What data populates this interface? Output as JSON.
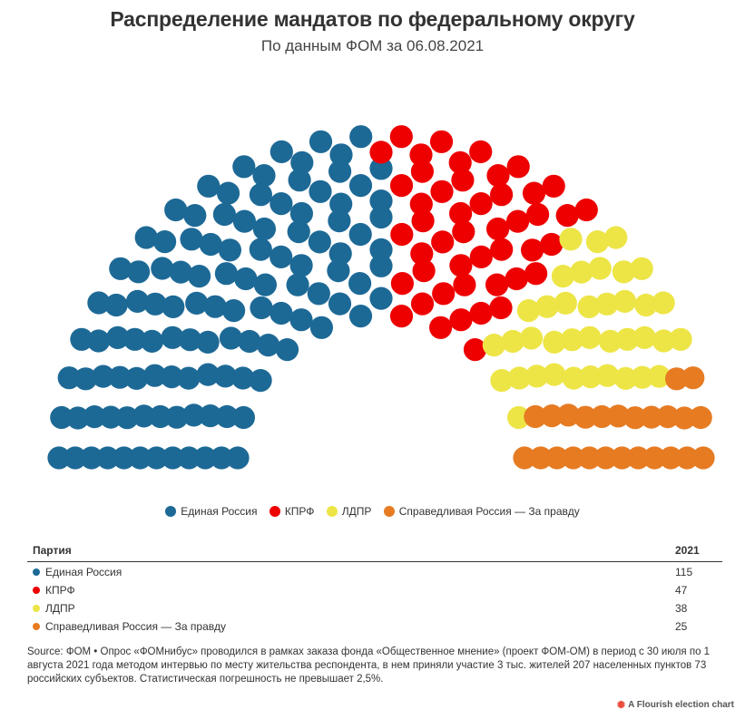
{
  "title": "Распределение мандатов по федеральному округу",
  "subtitle": "По данным ФОМ за 06.08.2021",
  "chart_data": {
    "type": "parliament",
    "total_seats": 225,
    "series": [
      {
        "name": "Единая Россия",
        "seats": 115,
        "color": "#1d6996"
      },
      {
        "name": "КПРФ",
        "seats": 47,
        "color": "#ee0000"
      },
      {
        "name": "ЛДПР",
        "seats": 38,
        "color": "#ede546"
      },
      {
        "name": "Справедливая Россия — За правду",
        "seats": 25,
        "color": "#e67b22"
      }
    ],
    "legend_position": "bottom-center"
  },
  "table": {
    "header_party": "Партия",
    "header_year": "2021",
    "rows": [
      {
        "party": "Единая Россия",
        "value": "115",
        "color": "#1d6996"
      },
      {
        "party": "КПРФ",
        "value": "47",
        "color": "#ee0000"
      },
      {
        "party": "ЛДПР",
        "value": "38",
        "color": "#ede546"
      },
      {
        "party": "Справедливая Россия — За правду",
        "value": "25",
        "color": "#e67b22"
      }
    ]
  },
  "source": "Source: ФОМ • Опрос «ФОМнибус» проводился в рамках заказа фонда «Общественное мнение» (проект ФОМ-ОМ) в период с 30 июля по 1 августа 2021 года методом интервью по месту жительства респондента, в нем приняли участие 3 тыс. жителей 207 населенных пунктов 73 российских субъектов. Статистическая погрешность не превышает 2,5%.",
  "credit": "A Flourish election chart",
  "credit_icon": "flourish-logo-icon"
}
